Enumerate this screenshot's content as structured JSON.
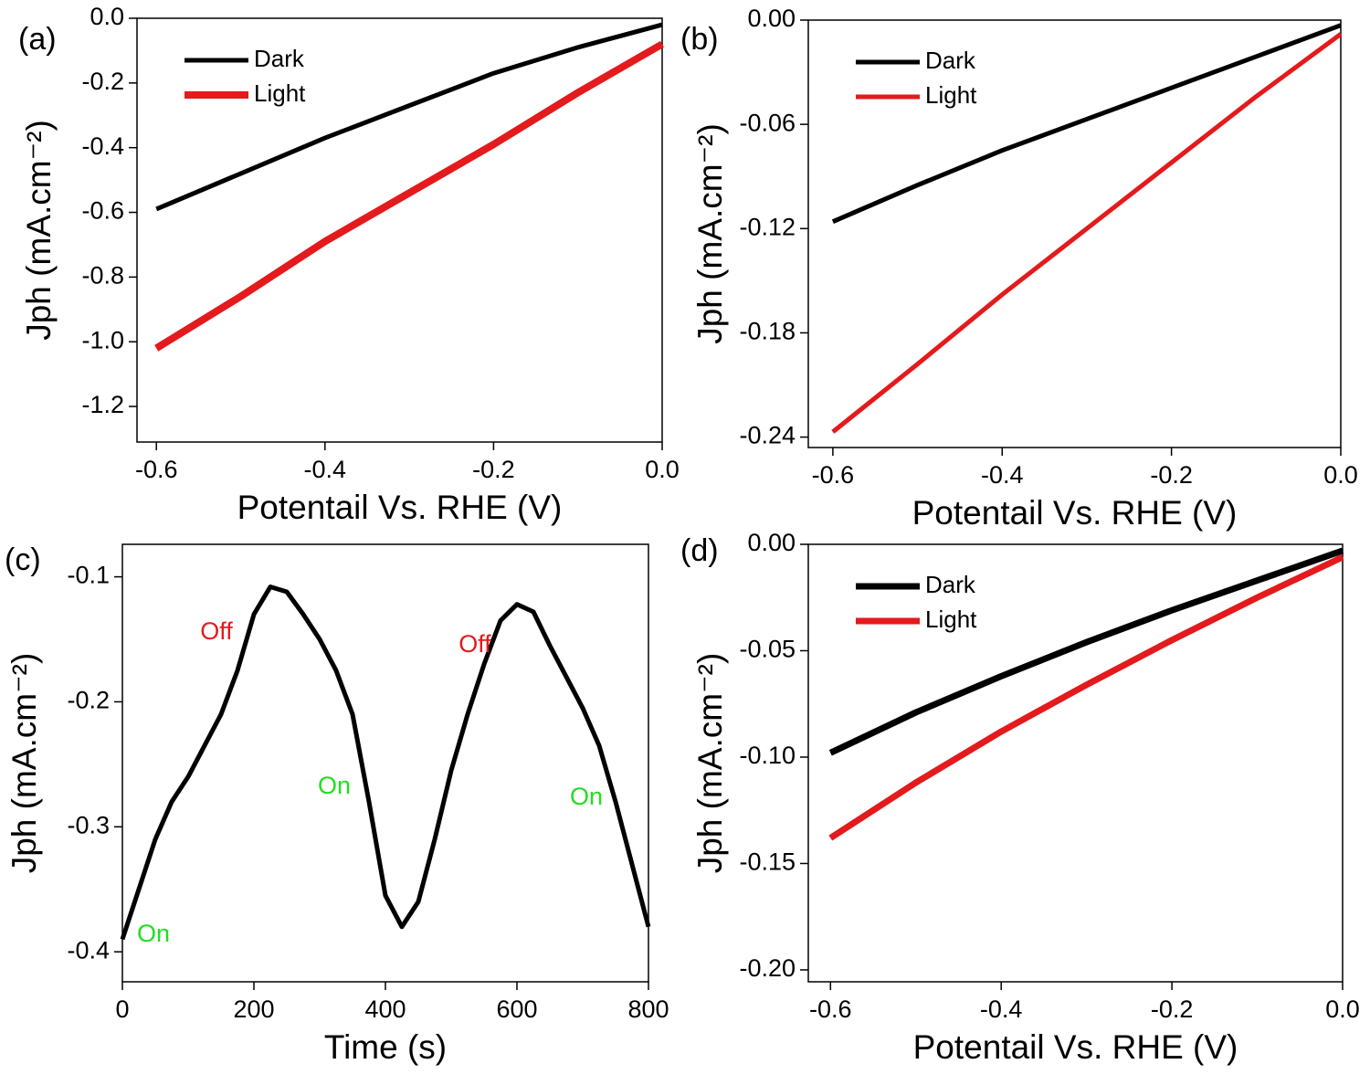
{
  "chart_data": [
    {
      "type": "line",
      "panel_label": "(a)",
      "x_label": "Potentail Vs. RHE  (V)",
      "y_label": "Jph (mA.cm⁻²)",
      "x": [
        -0.6,
        -0.5,
        -0.4,
        -0.3,
        -0.2,
        -0.1,
        0
      ],
      "series": [
        {
          "name": "Dark",
          "color": "#000000",
          "values": [
            -0.59,
            -0.48,
            -0.37,
            -0.27,
            -0.17,
            -0.09,
            -0.02
          ]
        },
        {
          "name": "Light",
          "color": "#e41a1c",
          "values": [
            -1.02,
            -0.86,
            -0.69,
            -0.54,
            -0.39,
            -0.23,
            -0.08
          ]
        }
      ],
      "xlim": [
        -0.623,
        0
      ],
      "xticks": [
        -0.6,
        -0.4,
        -0.2,
        {
          "value": 0,
          "label": "0.0"
        }
      ],
      "ylim": [
        -1.31,
        0
      ],
      "yticks": [
        {
          "value": 0,
          "label": "0.0"
        },
        -0.2,
        -0.4,
        -0.6,
        -0.8,
        {
          "value": -1,
          "label": "-1.0"
        },
        -1.2
      ],
      "legend": "upper left"
    },
    {
      "type": "line",
      "panel_label": "(b)",
      "x_label": "Potentail Vs. RHE  (V)",
      "y_label": "Jph (mA.cm⁻²)",
      "x": [
        -0.6,
        -0.5,
        -0.4,
        -0.3,
        -0.2,
        -0.1,
        0
      ],
      "series": [
        {
          "name": "Dark",
          "color": "#000000",
          "values": [
            -0.116,
            -0.095,
            -0.075,
            -0.057,
            -0.039,
            -0.021,
            -0.003
          ]
        },
        {
          "name": "Light",
          "color": "#e41a1c",
          "values": [
            -0.237,
            -0.198,
            -0.158,
            -0.12,
            -0.082,
            -0.044,
            -0.008
          ]
        }
      ],
      "xlim": [
        -0.629,
        0
      ],
      "xticks": [
        -0.6,
        -0.4,
        -0.2,
        {
          "value": 0,
          "label": "0.0"
        }
      ],
      "ylim": [
        -0.246,
        0
      ],
      "yticks": [
        {
          "value": 0,
          "label": "0.00"
        },
        -0.06,
        -0.12,
        -0.18,
        -0.24
      ],
      "legend": "upper left"
    },
    {
      "type": "line",
      "panel_label": "(c)",
      "x_label": "Time (s)",
      "y_label": "Jph (mA.cm⁻²)",
      "x": [
        0,
        25,
        50,
        75,
        100,
        125,
        150,
        175,
        200,
        225,
        250,
        275,
        300,
        325,
        350,
        375,
        400,
        425,
        450,
        475,
        500,
        525,
        550,
        575,
        600,
        625,
        650,
        675,
        700,
        725,
        750,
        775,
        800
      ],
      "series": [
        {
          "color": "#000000",
          "values": [
            -0.39,
            -0.35,
            -0.31,
            -0.28,
            -0.26,
            -0.235,
            -0.21,
            -0.175,
            -0.13,
            -0.108,
            -0.112,
            -0.13,
            -0.15,
            -0.175,
            -0.21,
            -0.28,
            -0.355,
            -0.38,
            -0.36,
            -0.31,
            -0.255,
            -0.21,
            -0.17,
            -0.135,
            -0.122,
            -0.128,
            -0.155,
            -0.18,
            -0.205,
            -0.235,
            -0.28,
            -0.33,
            -0.38
          ]
        }
      ],
      "xlim": [
        0,
        800
      ],
      "xticks": [
        0,
        200,
        400,
        600,
        800
      ],
      "ylim": [
        -0.424,
        -0.074
      ],
      "yticks": [
        -0.1,
        -0.2,
        -0.3,
        -0.4
      ],
      "annotations": [
        {
          "text": "Off",
          "color": "#e41a1c"
        },
        {
          "text": "On",
          "color": "#22dd22"
        },
        {
          "text": "Off",
          "color": "#e41a1c"
        },
        {
          "text": "On",
          "color": "#22dd22"
        },
        {
          "text": "On",
          "color": "#22dd22"
        }
      ]
    },
    {
      "type": "line",
      "panel_label": "(d)",
      "x_label": "Potentail Vs. RHE  (V)",
      "y_label": "Jph (mA.cm⁻²)",
      "x": [
        -0.6,
        -0.5,
        -0.4,
        -0.3,
        -0.2,
        -0.1,
        0
      ],
      "series": [
        {
          "name": "Dark",
          "color": "#000000",
          "values": [
            -0.098,
            -0.079,
            -0.062,
            -0.046,
            -0.031,
            -0.017,
            -0.003
          ]
        },
        {
          "name": "Light",
          "color": "#e41a1c",
          "values": [
            -0.138,
            -0.112,
            -0.088,
            -0.066,
            -0.045,
            -0.025,
            -0.006
          ]
        }
      ],
      "xlim": [
        -0.626,
        0
      ],
      "xticks": [
        -0.6,
        -0.4,
        -0.2,
        {
          "value": 0,
          "label": "0.0"
        }
      ],
      "ylim": [
        -0.2056,
        0
      ],
      "yticks": [
        {
          "value": 0,
          "label": "0.00"
        },
        -0.05,
        {
          "value": -0.1,
          "label": "-0.10"
        },
        -0.15,
        {
          "value": -0.2,
          "label": "-0.20"
        }
      ],
      "legend": "upper left"
    }
  ]
}
